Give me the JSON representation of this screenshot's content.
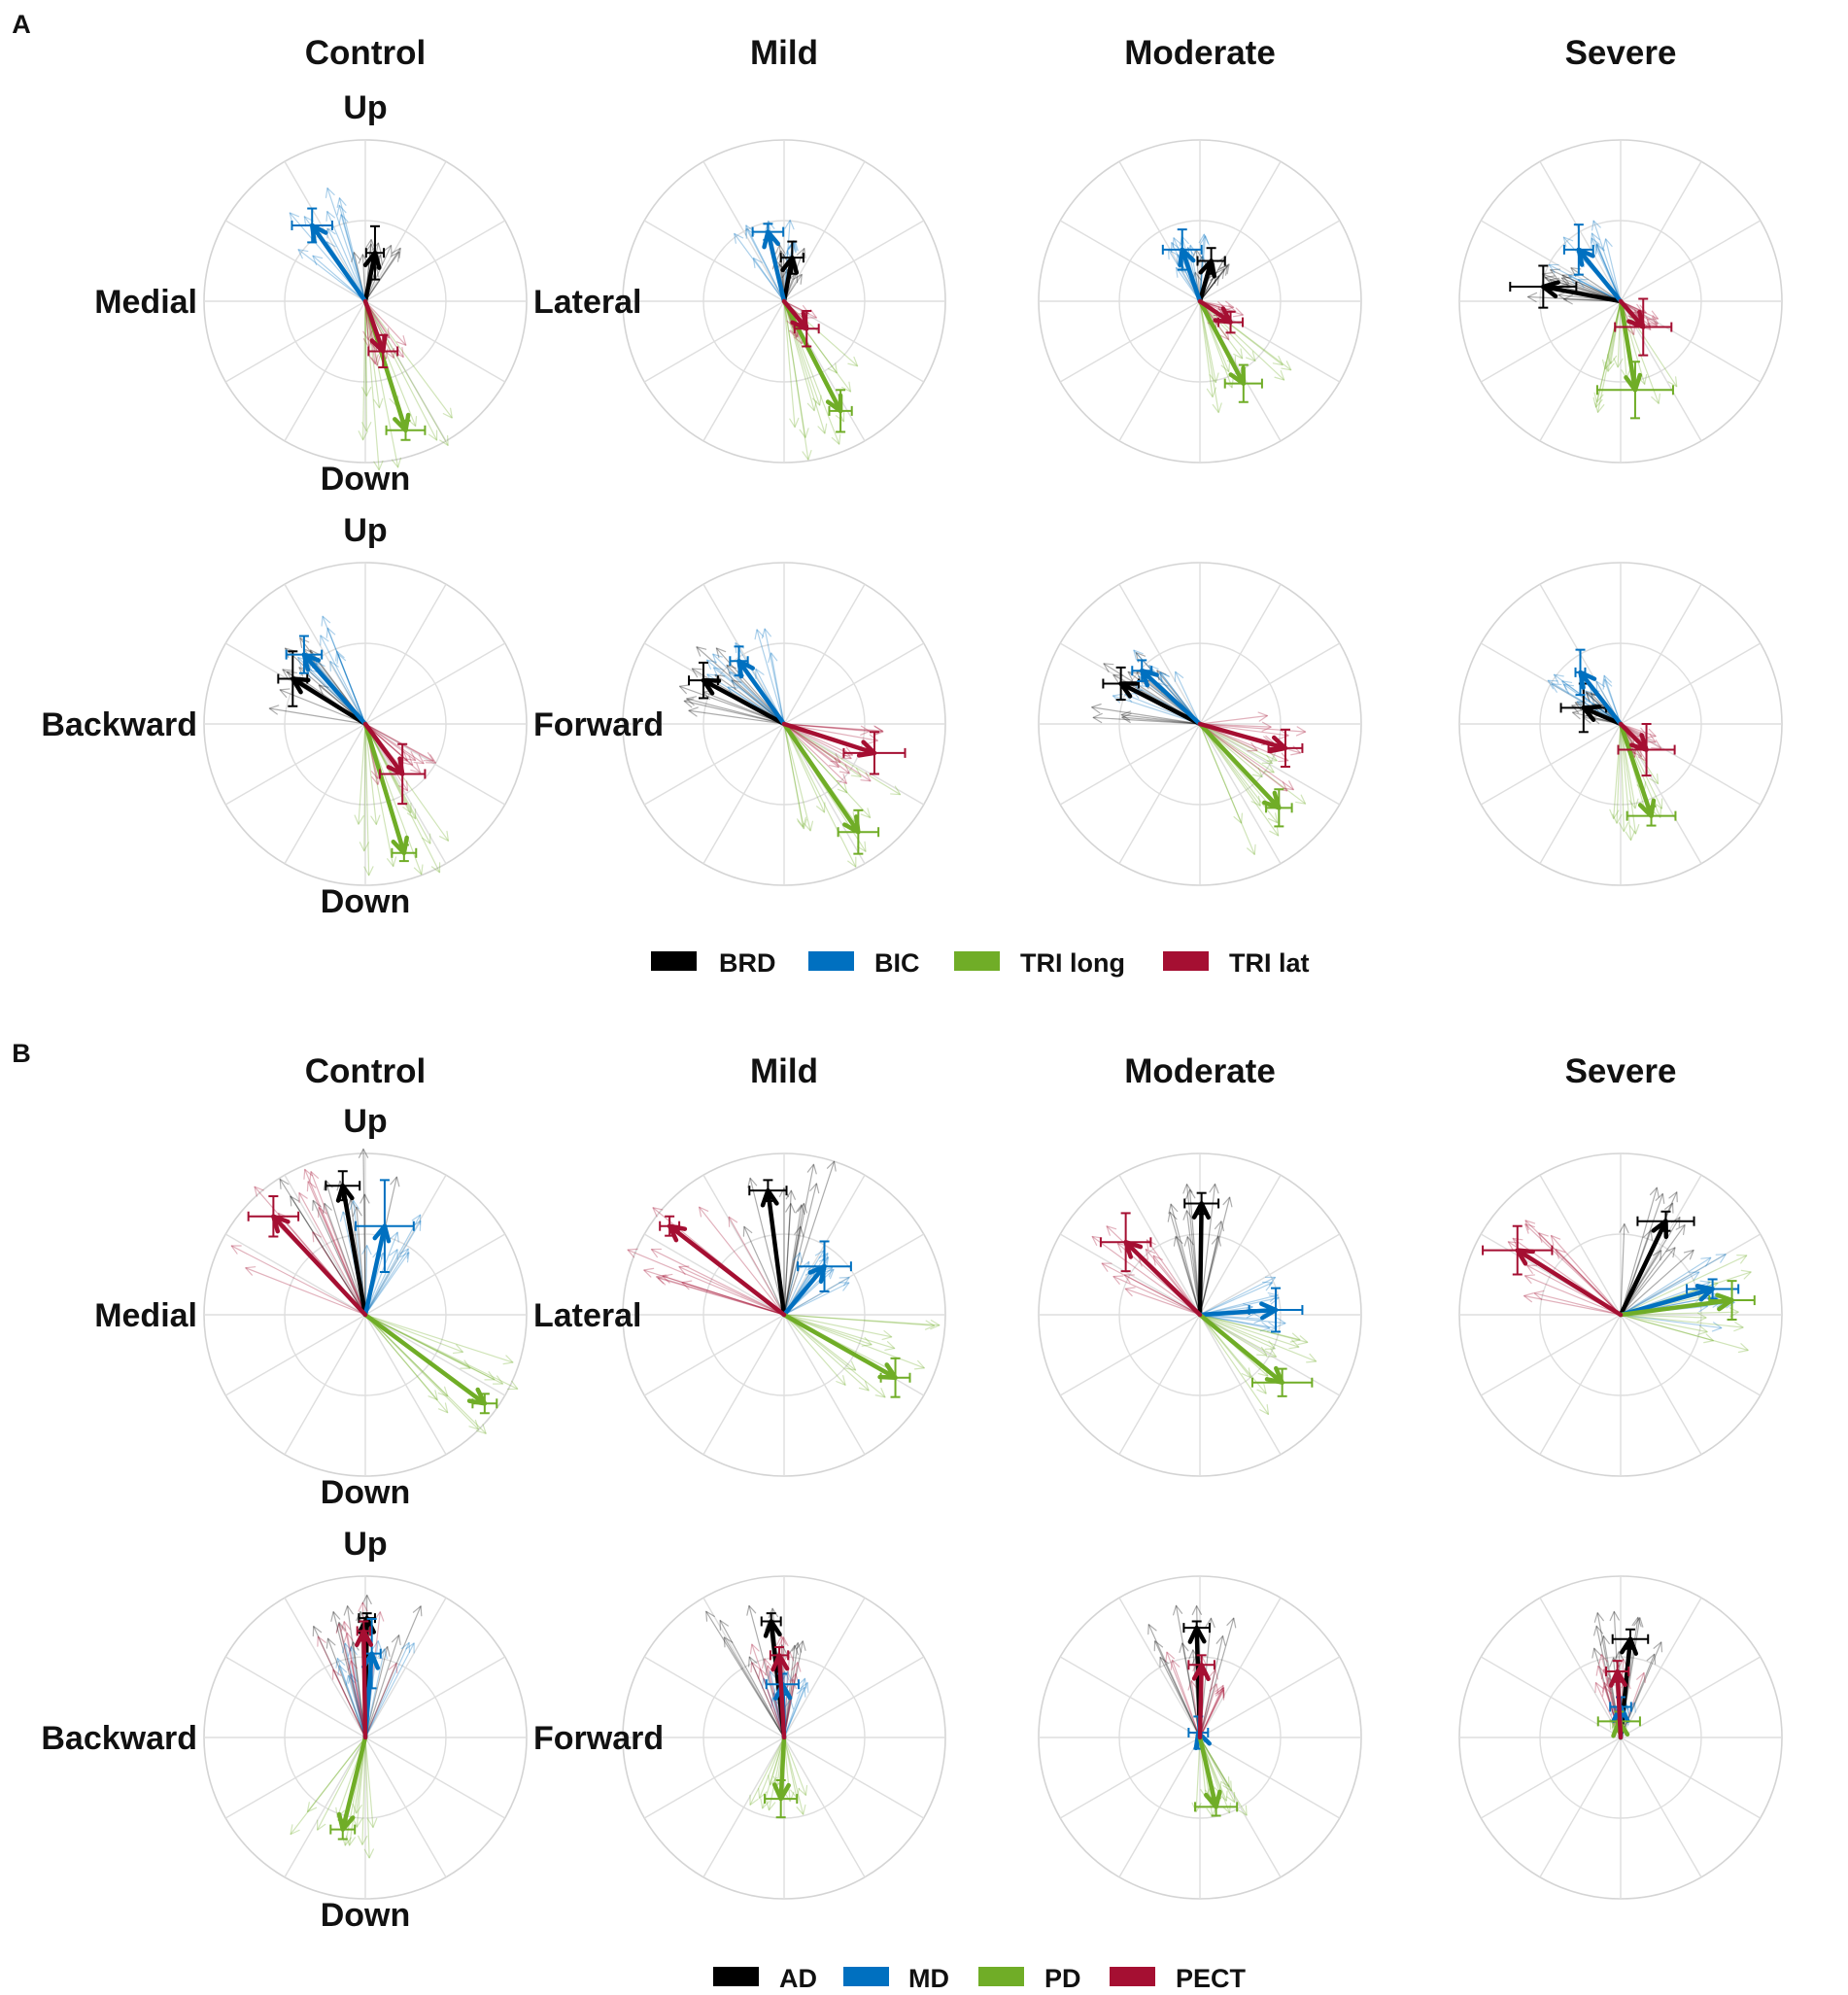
{
  "panels": [
    {
      "label": "A",
      "groups": [
        "Control",
        "Mild",
        "Moderate",
        "Severe"
      ],
      "rows": [
        {
          "axis_labels": {
            "up": "Up",
            "down": "Down",
            "left": "Medial",
            "right": "Lateral"
          }
        },
        {
          "axis_labels": {
            "up": "Up",
            "down": "Down",
            "left": "Backward",
            "right": "Forward"
          }
        }
      ],
      "legend": [
        {
          "name": "BRD",
          "color": "#000000"
        },
        {
          "name": "BIC",
          "color": "#0070c0"
        },
        {
          "name": "TRI long",
          "color": "#70ad27"
        },
        {
          "name": "TRI lat",
          "color": "#a50f32"
        }
      ]
    },
    {
      "label": "B",
      "groups": [
        "Control",
        "Mild",
        "Moderate",
        "Severe"
      ],
      "rows": [
        {
          "axis_labels": {
            "up": "Up",
            "down": "Down",
            "left": "Medial",
            "right": "Lateral"
          }
        },
        {
          "axis_labels": {
            "up": "Up",
            "down": "Down",
            "left": "Backward",
            "right": "Forward"
          }
        }
      ],
      "legend": [
        {
          "name": "AD",
          "color": "#000000"
        },
        {
          "name": "MD",
          "color": "#0070c0"
        },
        {
          "name": "PD",
          "color": "#70ad27"
        },
        {
          "name": "PECT",
          "color": "#a50f32"
        }
      ]
    }
  ],
  "chart_data": {
    "type": "polar-vector",
    "note": "Mean muscle synergy direction vectors in polar plots (magnitude normalized 0-1, angle in degrees: 0 = right/Lateral or Forward, 90 = Up). Error bars are x/y standard deviations.",
    "panels": [
      {
        "label": "A",
        "muscles": [
          "BRD",
          "BIC",
          "TRI long",
          "TRI lat"
        ],
        "rows": [
          {
            "plane": "Medial-Lateral / Up-Down",
            "cells": [
              {
                "group": "Control",
                "vectors": [
                  {
                    "muscle": "BRD",
                    "x": 0.06,
                    "y": 0.3,
                    "sx": 0.11,
                    "sy": 0.33
                  },
                  {
                    "muscle": "BIC",
                    "x": -0.33,
                    "y": 0.47,
                    "sx": 0.25,
                    "sy": 0.21
                  },
                  {
                    "muscle": "TRI long",
                    "x": 0.25,
                    "y": -0.8,
                    "sx": 0.24,
                    "sy": 0.12
                  },
                  {
                    "muscle": "TRI lat",
                    "x": 0.11,
                    "y": -0.31,
                    "sx": 0.18,
                    "sy": 0.2
                  }
                ]
              },
              {
                "group": "Mild",
                "vectors": [
                  {
                    "muscle": "BRD",
                    "x": 0.05,
                    "y": 0.27,
                    "sx": 0.14,
                    "sy": 0.2
                  },
                  {
                    "muscle": "BIC",
                    "x": -0.1,
                    "y": 0.43,
                    "sx": 0.19,
                    "sy": 0.1
                  },
                  {
                    "muscle": "TRI long",
                    "x": 0.35,
                    "y": -0.68,
                    "sx": 0.14,
                    "sy": 0.26
                  },
                  {
                    "muscle": "TRI lat",
                    "x": 0.14,
                    "y": -0.17,
                    "sx": 0.15,
                    "sy": 0.22
                  }
                ]
              },
              {
                "group": "Moderate",
                "vectors": [
                  {
                    "muscle": "BRD",
                    "x": 0.07,
                    "y": 0.25,
                    "sx": 0.17,
                    "sy": 0.16
                  },
                  {
                    "muscle": "BIC",
                    "x": -0.11,
                    "y": 0.32,
                    "sx": 0.24,
                    "sy": 0.25
                  },
                  {
                    "muscle": "TRI long",
                    "x": 0.27,
                    "y": -0.51,
                    "sx": 0.23,
                    "sy": 0.23
                  },
                  {
                    "muscle": "TRI lat",
                    "x": 0.19,
                    "y": -0.13,
                    "sx": 0.15,
                    "sy": 0.13
                  }
                ]
              },
              {
                "group": "Severe",
                "vectors": [
                  {
                    "muscle": "BRD",
                    "x": -0.48,
                    "y": 0.09,
                    "sx": 0.41,
                    "sy": 0.26
                  },
                  {
                    "muscle": "BIC",
                    "x": -0.26,
                    "y": 0.32,
                    "sx": 0.18,
                    "sy": 0.31
                  },
                  {
                    "muscle": "TRI long",
                    "x": 0.09,
                    "y": -0.55,
                    "sx": 0.47,
                    "sy": 0.35
                  },
                  {
                    "muscle": "TRI lat",
                    "x": 0.14,
                    "y": -0.16,
                    "sx": 0.35,
                    "sy": 0.35
                  }
                ]
              }
            ]
          },
          {
            "plane": "Backward-Forward / Up-Down",
            "cells": [
              {
                "group": "Control",
                "vectors": [
                  {
                    "muscle": "BRD",
                    "x": -0.45,
                    "y": 0.28,
                    "sx": 0.18,
                    "sy": 0.34
                  },
                  {
                    "muscle": "BIC",
                    "x": -0.38,
                    "y": 0.43,
                    "sx": 0.22,
                    "sy": 0.23
                  },
                  {
                    "muscle": "TRI long",
                    "x": 0.24,
                    "y": -0.8,
                    "sx": 0.15,
                    "sy": 0.1
                  },
                  {
                    "muscle": "TRI lat",
                    "x": 0.23,
                    "y": -0.31,
                    "sx": 0.28,
                    "sy": 0.37
                  }
                ]
              },
              {
                "group": "Mild",
                "vectors": [
                  {
                    "muscle": "BRD",
                    "x": -0.5,
                    "y": 0.27,
                    "sx": 0.18,
                    "sy": 0.22
                  },
                  {
                    "muscle": "BIC",
                    "x": -0.28,
                    "y": 0.39,
                    "sx": 0.11,
                    "sy": 0.18
                  },
                  {
                    "muscle": "TRI long",
                    "x": 0.46,
                    "y": -0.67,
                    "sx": 0.25,
                    "sy": 0.27
                  },
                  {
                    "muscle": "TRI lat",
                    "x": 0.56,
                    "y": -0.18,
                    "sx": 0.38,
                    "sy": 0.26
                  }
                ]
              },
              {
                "group": "Moderate",
                "vectors": [
                  {
                    "muscle": "BRD",
                    "x": -0.49,
                    "y": 0.25,
                    "sx": 0.22,
                    "sy": 0.2
                  },
                  {
                    "muscle": "BIC",
                    "x": -0.36,
                    "y": 0.33,
                    "sx": 0.12,
                    "sy": 0.13
                  },
                  {
                    "muscle": "TRI long",
                    "x": 0.49,
                    "y": -0.52,
                    "sx": 0.16,
                    "sy": 0.23
                  },
                  {
                    "muscle": "TRI lat",
                    "x": 0.53,
                    "y": -0.15,
                    "sx": 0.21,
                    "sy": 0.23
                  }
                ]
              },
              {
                "group": "Severe",
                "vectors": [
                  {
                    "muscle": "BRD",
                    "x": -0.23,
                    "y": 0.1,
                    "sx": 0.28,
                    "sy": 0.3
                  },
                  {
                    "muscle": "BIC",
                    "x": -0.25,
                    "y": 0.32,
                    "sx": 0.06,
                    "sy": 0.28
                  },
                  {
                    "muscle": "TRI long",
                    "x": 0.19,
                    "y": -0.57,
                    "sx": 0.3,
                    "sy": 0.12
                  },
                  {
                    "muscle": "TRI lat",
                    "x": 0.16,
                    "y": -0.16,
                    "sx": 0.35,
                    "sy": 0.32
                  }
                ]
              }
            ]
          }
        ]
      },
      {
        "label": "B",
        "muscles": [
          "AD",
          "MD",
          "PD",
          "PECT"
        ],
        "rows": [
          {
            "plane": "Medial-Lateral / Up-Down",
            "cells": [
              {
                "group": "Control",
                "vectors": [
                  {
                    "muscle": "AD",
                    "x": -0.14,
                    "y": 0.8,
                    "sx": 0.21,
                    "sy": 0.18
                  },
                  {
                    "muscle": "MD",
                    "x": 0.12,
                    "y": 0.55,
                    "sx": 0.36,
                    "sy": 0.57
                  },
                  {
                    "muscle": "PD",
                    "x": 0.74,
                    "y": -0.55,
                    "sx": 0.15,
                    "sy": 0.12
                  },
                  {
                    "muscle": "PECT",
                    "x": -0.57,
                    "y": 0.61,
                    "sx": 0.31,
                    "sy": 0.25
                  }
                ]
              },
              {
                "group": "Mild",
                "vectors": [
                  {
                    "muscle": "AD",
                    "x": -0.1,
                    "y": 0.77,
                    "sx": 0.23,
                    "sy": 0.13
                  },
                  {
                    "muscle": "MD",
                    "x": 0.25,
                    "y": 0.3,
                    "sx": 0.33,
                    "sy": 0.31
                  },
                  {
                    "muscle": "PD",
                    "x": 0.69,
                    "y": -0.39,
                    "sx": 0.18,
                    "sy": 0.24
                  },
                  {
                    "muscle": "PECT",
                    "x": -0.71,
                    "y": 0.55,
                    "sx": 0.12,
                    "sy": 0.12
                  }
                ]
              },
              {
                "group": "Moderate",
                "vectors": [
                  {
                    "muscle": "AD",
                    "x": 0.01,
                    "y": 0.69,
                    "sx": 0.21,
                    "sy": 0.13
                  },
                  {
                    "muscle": "MD",
                    "x": 0.47,
                    "y": 0.03,
                    "sx": 0.33,
                    "sy": 0.27
                  },
                  {
                    "muscle": "PD",
                    "x": 0.51,
                    "y": -0.42,
                    "sx": 0.37,
                    "sy": 0.17
                  },
                  {
                    "muscle": "PECT",
                    "x": -0.46,
                    "y": 0.45,
                    "sx": 0.31,
                    "sy": 0.36
                  }
                ]
              },
              {
                "group": "Severe",
                "vectors": [
                  {
                    "muscle": "AD",
                    "x": 0.28,
                    "y": 0.58,
                    "sx": 0.35,
                    "sy": 0.12
                  },
                  {
                    "muscle": "MD",
                    "x": 0.57,
                    "y": 0.16,
                    "sx": 0.32,
                    "sy": 0.12
                  },
                  {
                    "muscle": "PD",
                    "x": 0.69,
                    "y": 0.09,
                    "sx": 0.28,
                    "sy": 0.24
                  },
                  {
                    "muscle": "PECT",
                    "x": -0.64,
                    "y": 0.4,
                    "sx": 0.43,
                    "sy": 0.3
                  }
                ]
              }
            ]
          },
          {
            "plane": "Backward-Forward / Up-Down",
            "cells": [
              {
                "group": "Control",
                "vectors": [
                  {
                    "muscle": "AD",
                    "x": 0.01,
                    "y": 0.74,
                    "sx": 0.1,
                    "sy": 0.06
                  },
                  {
                    "muscle": "MD",
                    "x": 0.04,
                    "y": 0.52,
                    "sx": 0.11,
                    "sy": 0.43
                  },
                  {
                    "muscle": "PD",
                    "x": -0.14,
                    "y": -0.57,
                    "sx": 0.15,
                    "sy": 0.12
                  },
                  {
                    "muscle": "PECT",
                    "x": -0.01,
                    "y": 0.66,
                    "sx": 0.08,
                    "sy": 0.12
                  }
                ]
              },
              {
                "group": "Mild",
                "vectors": [
                  {
                    "muscle": "AD",
                    "x": -0.08,
                    "y": 0.72,
                    "sx": 0.12,
                    "sy": 0.1
                  },
                  {
                    "muscle": "MD",
                    "x": -0.01,
                    "y": 0.33,
                    "sx": 0.2,
                    "sy": 0.13
                  },
                  {
                    "muscle": "PD",
                    "x": -0.02,
                    "y": -0.38,
                    "sx": 0.2,
                    "sy": 0.23
                  },
                  {
                    "muscle": "PECT",
                    "x": -0.03,
                    "y": 0.51,
                    "sx": 0.11,
                    "sy": 0.1
                  }
                ]
              },
              {
                "group": "Moderate",
                "vectors": [
                  {
                    "muscle": "AD",
                    "x": -0.02,
                    "y": 0.68,
                    "sx": 0.16,
                    "sy": 0.08
                  },
                  {
                    "muscle": "MD",
                    "x": -0.01,
                    "y": 0.03,
                    "sx": 0.12,
                    "sy": 0.2
                  },
                  {
                    "muscle": "PD",
                    "x": 0.1,
                    "y": -0.43,
                    "sx": 0.26,
                    "sy": 0.11
                  },
                  {
                    "muscle": "PECT",
                    "x": 0.01,
                    "y": 0.45,
                    "sx": 0.16,
                    "sy": 0.12
                  }
                ]
              },
              {
                "group": "Severe",
                "vectors": [
                  {
                    "muscle": "AD",
                    "x": 0.06,
                    "y": 0.61,
                    "sx": 0.22,
                    "sy": 0.12
                  },
                  {
                    "muscle": "MD",
                    "x": 0.0,
                    "y": 0.19,
                    "sx": 0.13,
                    "sy": 0.12
                  },
                  {
                    "muscle": "PD",
                    "x": -0.01,
                    "y": 0.1,
                    "sx": 0.26,
                    "sy": 0.12
                  },
                  {
                    "muscle": "PECT",
                    "x": -0.02,
                    "y": 0.41,
                    "sx": 0.14,
                    "sy": 0.13
                  }
                ]
              }
            ]
          }
        ]
      }
    ]
  }
}
